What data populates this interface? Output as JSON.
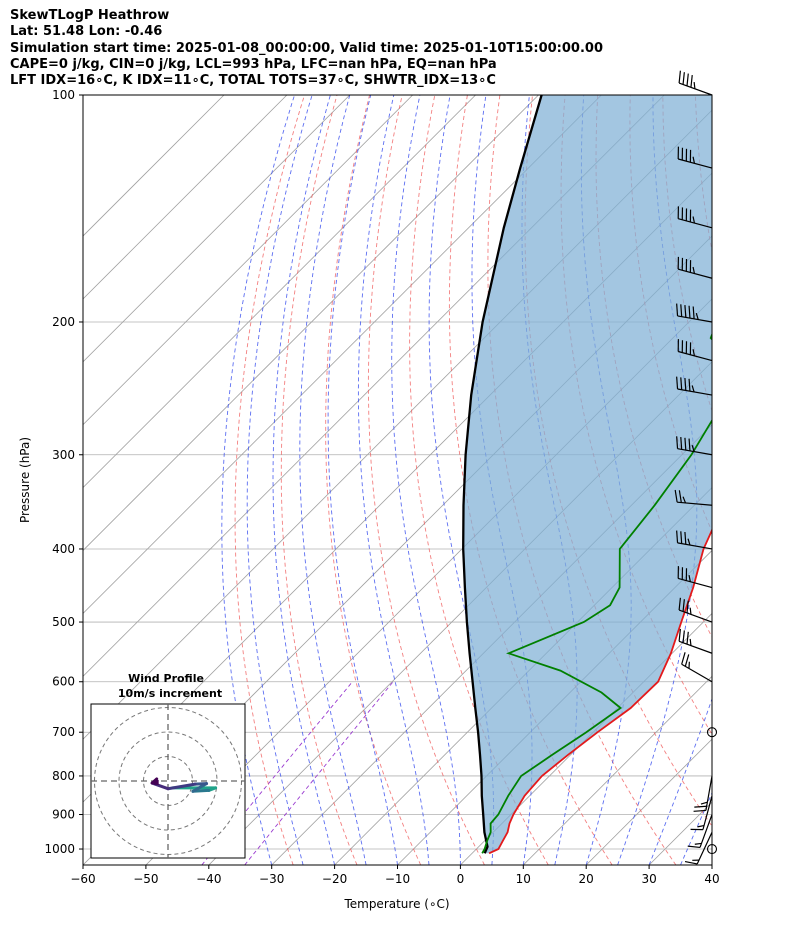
{
  "header": {
    "title": "SkewTLogP Heathrow",
    "location": "Lat: 51.48   Lon: -0.46",
    "times": "Simulation start time: 2025-01-08_00:00:00, Valid time: 2025-01-10T15:00:00.00",
    "params1": "CAPE=0 j/kg, CIN=0 j/kg, LCL=993 hPa, LFC=nan hPa, EQ=nan hPa",
    "params2": "LFT IDX=16∘C, K IDX=11∘C, TOTAL TOTS=37∘C, SHWTR_IDX=13∘C"
  },
  "chart_data": {
    "type": "line",
    "xlabel": "Temperature (∘C)",
    "ylabel": "Pressure (hPa)",
    "xlim": [
      -60,
      40
    ],
    "ylim": [
      1050,
      100
    ],
    "yscale": "log",
    "grid": true,
    "x_ticks": [
      -60,
      -50,
      -40,
      -30,
      -20,
      -10,
      0,
      10,
      20,
      30,
      40
    ],
    "y_ticks": [
      100,
      200,
      300,
      400,
      500,
      600,
      700,
      800,
      900,
      1000
    ],
    "colors": {
      "temperature": "#e31a1c",
      "dewpoint": "#008000",
      "parcel": "#000000",
      "cape_fill": "#7fb0d6",
      "dry_adiabat": "#f06060",
      "moist_adiabat": "#4055ee",
      "mixing_ratio": "#9a3bd0",
      "isotherm": "#a0a0a0"
    },
    "series": [
      {
        "key": "temperature",
        "points": [
          [
            1013,
            2.7
          ],
          [
            1000,
            3.5
          ],
          [
            975,
            2.9
          ],
          [
            950,
            2.3
          ],
          [
            925,
            1.2
          ],
          [
            900,
            0.4
          ],
          [
            850,
            -0.8
          ],
          [
            800,
            -1.2
          ],
          [
            750,
            -0.4
          ],
          [
            700,
            0.7
          ],
          [
            650,
            2.1
          ],
          [
            600,
            2.3
          ],
          [
            550,
            -0.2
          ],
          [
            500,
            -3.5
          ],
          [
            450,
            -7.1
          ],
          [
            400,
            -11.6
          ],
          [
            350,
            -15.4
          ],
          [
            300,
            -18.6
          ],
          [
            250,
            -19.6
          ],
          [
            200,
            -19.9
          ],
          [
            175,
            -19.1
          ],
          [
            150,
            -17.6
          ],
          [
            125,
            -18.3
          ],
          [
            100,
            -19.4
          ]
        ]
      },
      {
        "key": "dewpoint",
        "points": [
          [
            1013,
            1.6
          ],
          [
            1000,
            1.3
          ],
          [
            975,
            0.4
          ],
          [
            950,
            -0.4
          ],
          [
            925,
            -1.8
          ],
          [
            900,
            -2.0
          ],
          [
            850,
            -3.4
          ],
          [
            800,
            -4.5
          ],
          [
            750,
            -2.9
          ],
          [
            700,
            -1.1
          ],
          [
            650,
            0.5
          ],
          [
            620,
            -5.0
          ],
          [
            580,
            -15.0
          ],
          [
            550,
            -26.0
          ],
          [
            500,
            -19.0
          ],
          [
            475,
            -17.5
          ],
          [
            450,
            -18.8
          ],
          [
            400,
            -24.9
          ],
          [
            350,
            -26.3
          ],
          [
            300,
            -28.5
          ],
          [
            275,
            -30.3
          ],
          [
            250,
            -32.2
          ],
          [
            225,
            -36.7
          ],
          [
            210,
            -44.0
          ],
          [
            200,
            -45.5
          ],
          [
            175,
            -49.0
          ],
          [
            150,
            -52.0
          ],
          [
            125,
            -54.9
          ],
          [
            100,
            -56.6
          ]
        ]
      },
      {
        "key": "parcel",
        "points": [
          [
            1013,
            2.0
          ],
          [
            993,
            1.4
          ],
          [
            950,
            -1.4
          ],
          [
            900,
            -4.4
          ],
          [
            850,
            -7.6
          ],
          [
            800,
            -10.8
          ],
          [
            750,
            -14.4
          ],
          [
            700,
            -18.3
          ],
          [
            650,
            -22.6
          ],
          [
            600,
            -27.2
          ],
          [
            550,
            -32.2
          ],
          [
            500,
            -37.6
          ],
          [
            450,
            -43.4
          ],
          [
            400,
            -49.8
          ],
          [
            350,
            -56.7
          ],
          [
            300,
            -64.4
          ],
          [
            250,
            -73.0
          ],
          [
            200,
            -82.8
          ],
          [
            150,
            -94.4
          ],
          [
            125,
            -101.3
          ],
          [
            100,
            -109.5
          ]
        ]
      }
    ],
    "cape_region": "between parcel and temperature",
    "wind_barbs": [
      {
        "p": 100,
        "speed_kt": 45,
        "dir_deg": 290
      },
      {
        "p": 125,
        "speed_kt": 45,
        "dir_deg": 285
      },
      {
        "p": 150,
        "speed_kt": 45,
        "dir_deg": 285
      },
      {
        "p": 175,
        "speed_kt": 45,
        "dir_deg": 285
      },
      {
        "p": 200,
        "speed_kt": 55,
        "dir_deg": 280
      },
      {
        "p": 225,
        "speed_kt": 45,
        "dir_deg": 285
      },
      {
        "p": 250,
        "speed_kt": 45,
        "dir_deg": 280
      },
      {
        "p": 300,
        "speed_kt": 45,
        "dir_deg": 280
      },
      {
        "p": 350,
        "speed_kt": 25,
        "dir_deg": 275
      },
      {
        "p": 400,
        "speed_kt": 35,
        "dir_deg": 280
      },
      {
        "p": 450,
        "speed_kt": 35,
        "dir_deg": 285
      },
      {
        "p": 500,
        "speed_kt": 35,
        "dir_deg": 290
      },
      {
        "p": 550,
        "speed_kt": 35,
        "dir_deg": 290
      },
      {
        "p": 600,
        "speed_kt": 25,
        "dir_deg": 300
      },
      {
        "p": 700,
        "speed_kt": 0,
        "dir_deg": 0
      },
      {
        "p": 800,
        "speed_kt": 25,
        "dir_deg": 190
      },
      {
        "p": 850,
        "speed_kt": 15,
        "dir_deg": 195
      },
      {
        "p": 900,
        "speed_kt": 15,
        "dir_deg": 200
      },
      {
        "p": 950,
        "speed_kt": 15,
        "dir_deg": 205
      },
      {
        "p": 1000,
        "speed_kt": 0,
        "dir_deg": 0
      }
    ],
    "inset": {
      "title": "Wind Profile",
      "subtitle": "10m/s increment",
      "rings_ms": [
        10,
        20,
        30
      ],
      "hodograph": [
        [
          1.0,
          4.0,
          "#f5d000"
        ],
        [
          10.5,
          4.0,
          "#21a38a"
        ],
        [
          9.0,
          5.5,
          "#21a38a"
        ],
        [
          5.5,
          6.0,
          "#2a788e"
        ],
        [
          8.5,
          1.5,
          "#31688e"
        ],
        [
          6.0,
          1.8,
          "#39568c"
        ],
        [
          0.0,
          4.5,
          "#3f3a83"
        ],
        [
          -3.5,
          1.2,
          "#472d7b"
        ],
        [
          -2.5,
          -1.2,
          "#440154"
        ]
      ]
    }
  }
}
